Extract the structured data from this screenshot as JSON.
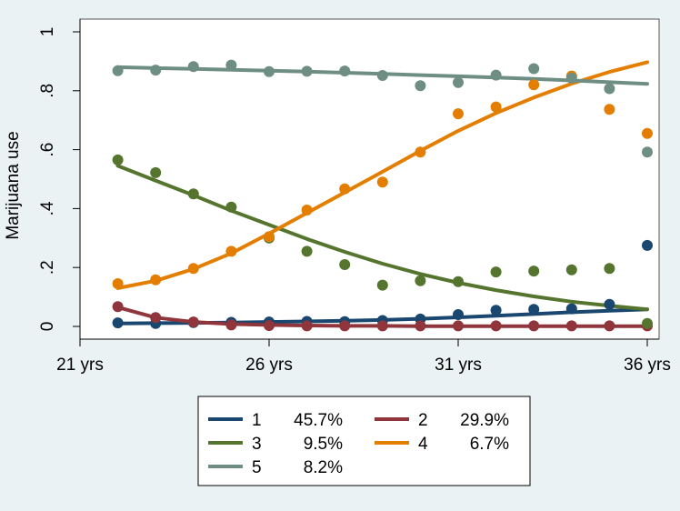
{
  "chart_data": {
    "type": "line",
    "xlabel": "",
    "ylabel": "Marijuana use",
    "xlim": [
      21,
      36
    ],
    "ylim": [
      0,
      1
    ],
    "x_ticks": [
      {
        "value": 21,
        "label": "21 yrs"
      },
      {
        "value": 26,
        "label": "26 yrs"
      },
      {
        "value": 31,
        "label": "31 yrs"
      },
      {
        "value": 36,
        "label": "36 yrs"
      }
    ],
    "y_ticks": [
      {
        "value": 0,
        "label": "0"
      },
      {
        "value": 0.2,
        "label": ".2"
      },
      {
        "value": 0.4,
        "label": ".4"
      },
      {
        "value": 0.6,
        "label": ".6"
      },
      {
        "value": 0.8,
        "label": ".8"
      },
      {
        "value": 1,
        "label": "1"
      }
    ],
    "grid": false,
    "legend_position": "bottom",
    "series": [
      {
        "name": "1",
        "share": "45.7%",
        "color": "#1a476f",
        "fitted": [
          [
            22,
            0.01
          ],
          [
            23,
            0.011
          ],
          [
            24,
            0.012
          ],
          [
            25,
            0.013
          ],
          [
            26,
            0.015
          ],
          [
            27,
            0.017
          ],
          [
            28,
            0.019
          ],
          [
            29,
            0.022
          ],
          [
            30,
            0.026
          ],
          [
            31,
            0.031
          ],
          [
            32,
            0.036
          ],
          [
            33,
            0.042
          ],
          [
            34,
            0.048
          ],
          [
            35,
            0.053
          ],
          [
            36,
            0.058
          ]
        ],
        "observed": [
          [
            22,
            0.012
          ],
          [
            23,
            0.01
          ],
          [
            24,
            0.013
          ],
          [
            25,
            0.014
          ],
          [
            26,
            0.015
          ],
          [
            27,
            0.017
          ],
          [
            28,
            0.016
          ],
          [
            29,
            0.02
          ],
          [
            30,
            0.025
          ],
          [
            31,
            0.04
          ],
          [
            32,
            0.055
          ],
          [
            33,
            0.058
          ],
          [
            34,
            0.06
          ],
          [
            35,
            0.075
          ],
          [
            36,
            0.275
          ]
        ]
      },
      {
        "name": "2",
        "share": "29.9%",
        "color": "#90353b",
        "fitted": [
          [
            22,
            0.065
          ],
          [
            23,
            0.03
          ],
          [
            24,
            0.015
          ],
          [
            25,
            0.008
          ],
          [
            26,
            0.005
          ],
          [
            27,
            0.003
          ],
          [
            28,
            0.002
          ],
          [
            29,
            0.002
          ],
          [
            30,
            0.001
          ],
          [
            31,
            0.001
          ],
          [
            32,
            0.001
          ],
          [
            33,
            0.001
          ],
          [
            34,
            0.001
          ],
          [
            35,
            0.001
          ],
          [
            36,
            0.001
          ]
        ],
        "observed": [
          [
            22,
            0.067
          ],
          [
            23,
            0.03
          ],
          [
            24,
            0.015
          ],
          [
            25,
            0.005
          ],
          [
            26,
            0.003
          ],
          [
            27,
            0.002
          ],
          [
            28,
            0.002
          ],
          [
            29,
            0.002
          ],
          [
            30,
            0.002
          ],
          [
            31,
            0.002
          ],
          [
            32,
            0.002
          ],
          [
            33,
            0.002
          ],
          [
            34,
            0.002
          ],
          [
            35,
            0.002
          ],
          [
            36,
            0.002
          ]
        ]
      },
      {
        "name": "3",
        "share": "9.5%",
        "color": "#55752f",
        "fitted": [
          [
            22,
            0.545
          ],
          [
            23,
            0.495
          ],
          [
            24,
            0.445
          ],
          [
            25,
            0.393
          ],
          [
            26,
            0.345
          ],
          [
            27,
            0.297
          ],
          [
            28,
            0.253
          ],
          [
            29,
            0.213
          ],
          [
            30,
            0.178
          ],
          [
            31,
            0.148
          ],
          [
            32,
            0.123
          ],
          [
            33,
            0.102
          ],
          [
            34,
            0.084
          ],
          [
            35,
            0.07
          ],
          [
            36,
            0.058
          ]
        ],
        "observed": [
          [
            22,
            0.565
          ],
          [
            23,
            0.522
          ],
          [
            24,
            0.45
          ],
          [
            25,
            0.405
          ],
          [
            26,
            0.3
          ],
          [
            27,
            0.255
          ],
          [
            28,
            0.21
          ],
          [
            29,
            0.14
          ],
          [
            30,
            0.155
          ],
          [
            31,
            0.152
          ],
          [
            32,
            0.185
          ],
          [
            33,
            0.188
          ],
          [
            34,
            0.192
          ],
          [
            35,
            0.197
          ],
          [
            36,
            0.01
          ]
        ]
      },
      {
        "name": "4",
        "share": "6.7%",
        "color": "#e37e00",
        "fitted": [
          [
            22,
            0.13
          ],
          [
            23,
            0.155
          ],
          [
            24,
            0.195
          ],
          [
            25,
            0.248
          ],
          [
            26,
            0.315
          ],
          [
            27,
            0.385
          ],
          [
            28,
            0.455
          ],
          [
            29,
            0.525
          ],
          [
            30,
            0.596
          ],
          [
            31,
            0.664
          ],
          [
            32,
            0.724
          ],
          [
            33,
            0.777
          ],
          [
            34,
            0.824
          ],
          [
            35,
            0.864
          ],
          [
            36,
            0.897
          ]
        ],
        "observed": [
          [
            22,
            0.145
          ],
          [
            23,
            0.158
          ],
          [
            24,
            0.197
          ],
          [
            25,
            0.255
          ],
          [
            26,
            0.305
          ],
          [
            27,
            0.395
          ],
          [
            28,
            0.467
          ],
          [
            29,
            0.49
          ],
          [
            30,
            0.592
          ],
          [
            31,
            0.722
          ],
          [
            32,
            0.745
          ],
          [
            33,
            0.82
          ],
          [
            34,
            0.85
          ],
          [
            35,
            0.737
          ],
          [
            36,
            0.655
          ]
        ]
      },
      {
        "name": "5",
        "share": "8.2%",
        "color": "#6e8e84",
        "fitted": [
          [
            22,
            0.88
          ],
          [
            23,
            0.877
          ],
          [
            24,
            0.874
          ],
          [
            25,
            0.871
          ],
          [
            26,
            0.868
          ],
          [
            27,
            0.865
          ],
          [
            28,
            0.861
          ],
          [
            29,
            0.857
          ],
          [
            30,
            0.853
          ],
          [
            31,
            0.849
          ],
          [
            32,
            0.845
          ],
          [
            33,
            0.84
          ],
          [
            34,
            0.835
          ],
          [
            35,
            0.829
          ],
          [
            36,
            0.823
          ]
        ],
        "observed": [
          [
            22,
            0.868
          ],
          [
            23,
            0.87
          ],
          [
            24,
            0.882
          ],
          [
            25,
            0.887
          ],
          [
            26,
            0.865
          ],
          [
            27,
            0.866
          ],
          [
            28,
            0.867
          ],
          [
            29,
            0.852
          ],
          [
            30,
            0.817
          ],
          [
            31,
            0.828
          ],
          [
            32,
            0.853
          ],
          [
            33,
            0.875
          ],
          [
            34,
            0.843
          ],
          [
            35,
            0.807
          ],
          [
            36,
            0.592
          ]
        ]
      }
    ]
  }
}
